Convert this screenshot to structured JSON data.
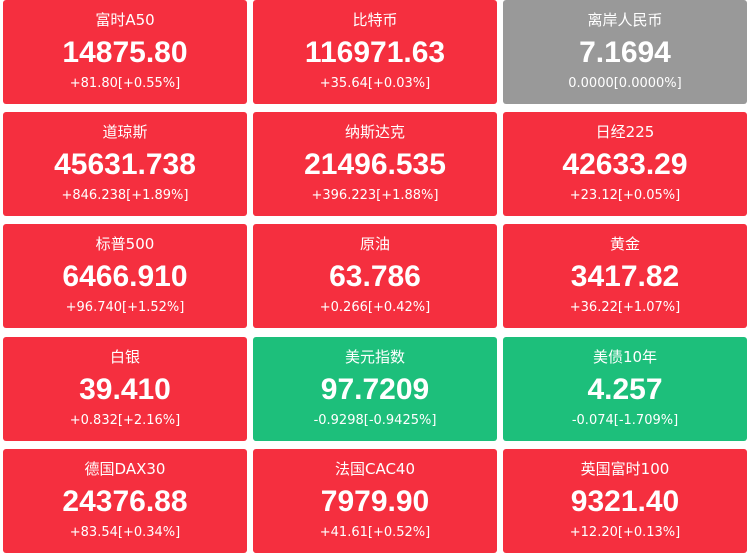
{
  "tiles": [
    {
      "name": "富时A50",
      "price": "14875.80",
      "change": "+81.80[+0.55%]",
      "color": "#f52f3f"
    },
    {
      "name": "比特币",
      "price": "116971.63",
      "change": "+35.64[+0.03%]",
      "color": "#f52f3f"
    },
    {
      "name": "离岸人民币",
      "price": "7.1694",
      "change": "0.0000[0.0000%]",
      "color": "#999999"
    },
    {
      "name": "道琼斯",
      "price": "45631.738",
      "change": "+846.238[+1.89%]",
      "color": "#f52f3f"
    },
    {
      "name": "纳斯达克",
      "price": "21496.535",
      "change": "+396.223[+1.88%]",
      "color": "#f52f3f"
    },
    {
      "name": "日经225",
      "price": "42633.29",
      "change": "+23.12[+0.05%]",
      "color": "#f52f3f"
    },
    {
      "name": "标普500",
      "price": "6466.910",
      "change": "+96.740[+1.52%]",
      "color": "#f52f3f"
    },
    {
      "name": "原油",
      "price": "63.786",
      "change": "+0.266[+0.42%]",
      "color": "#f52f3f"
    },
    {
      "name": "黄金",
      "price": "3417.82",
      "change": "+36.22[+1.07%]",
      "color": "#f52f3f"
    },
    {
      "name": "白银",
      "price": "39.410",
      "change": "+0.832[+2.16%]",
      "color": "#f52f3f"
    },
    {
      "name": "美元指数",
      "price": "97.7209",
      "change": "-0.9298[-0.9425%]",
      "color": "#1dbf7b"
    },
    {
      "name": "美债10年",
      "price": "4.257",
      "change": "-0.074[-1.709%]",
      "color": "#1dbf7b"
    },
    {
      "name": "德国DAX30",
      "price": "24376.88",
      "change": "+83.54[+0.34%]",
      "color": "#f52f3f"
    },
    {
      "name": "法国CAC40",
      "price": "7979.90",
      "change": "+41.61[+0.52%]",
      "color": "#f52f3f"
    },
    {
      "name": "英国富时100",
      "price": "9321.40",
      "change": "+12.20[+0.13%]",
      "color": "#f52f3f"
    }
  ]
}
